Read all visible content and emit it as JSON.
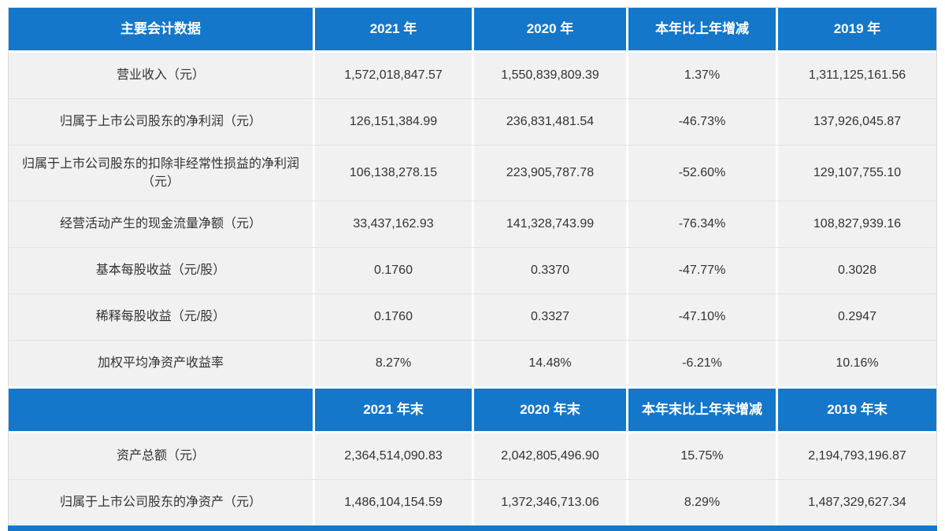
{
  "colors": {
    "header_bg": "#1577c9",
    "header_text": "#ffffff",
    "row_bg": "#f1f1f2",
    "cell_text": "#333333"
  },
  "table": {
    "sections": [
      {
        "header": [
          "主要会计数据",
          "2021 年",
          "2020 年",
          "本年比上年增减",
          "2019 年"
        ],
        "rows": [
          [
            "营业收入（元）",
            "1,572,018,847.57",
            "1,550,839,809.39",
            "1.37%",
            "1,311,125,161.56"
          ],
          [
            "归属于上市公司股东的净利润（元）",
            "126,151,384.99",
            "236,831,481.54",
            "-46.73%",
            "137,926,045.87"
          ],
          [
            "归属于上市公司股东的扣除非经常性损益的净利润（元）",
            "106,138,278.15",
            "223,905,787.78",
            "-52.60%",
            "129,107,755.10"
          ],
          [
            "经营活动产生的现金流量净额（元）",
            "33,437,162.93",
            "141,328,743.99",
            "-76.34%",
            "108,827,939.16"
          ],
          [
            "基本每股收益（元/股）",
            "0.1760",
            "0.3370",
            "-47.77%",
            "0.3028"
          ],
          [
            "稀释每股收益（元/股）",
            "0.1760",
            "0.3327",
            "-47.10%",
            "0.2947"
          ],
          [
            "加权平均净资产收益率",
            "8.27%",
            "14.48%",
            "-6.21%",
            "10.16%"
          ]
        ]
      },
      {
        "header": [
          "",
          "2021 年末",
          "2020 年末",
          "本年末比上年末增减",
          "2019 年末"
        ],
        "rows": [
          [
            "资产总额（元）",
            "2,364,514,090.83",
            "2,042,805,496.90",
            "15.75%",
            "2,194,793,196.87"
          ],
          [
            "归属于上市公司股东的净资产（元）",
            "1,486,104,154.59",
            "1,372,346,713.06",
            "8.29%",
            "1,487,329,627.34"
          ]
        ]
      }
    ]
  }
}
